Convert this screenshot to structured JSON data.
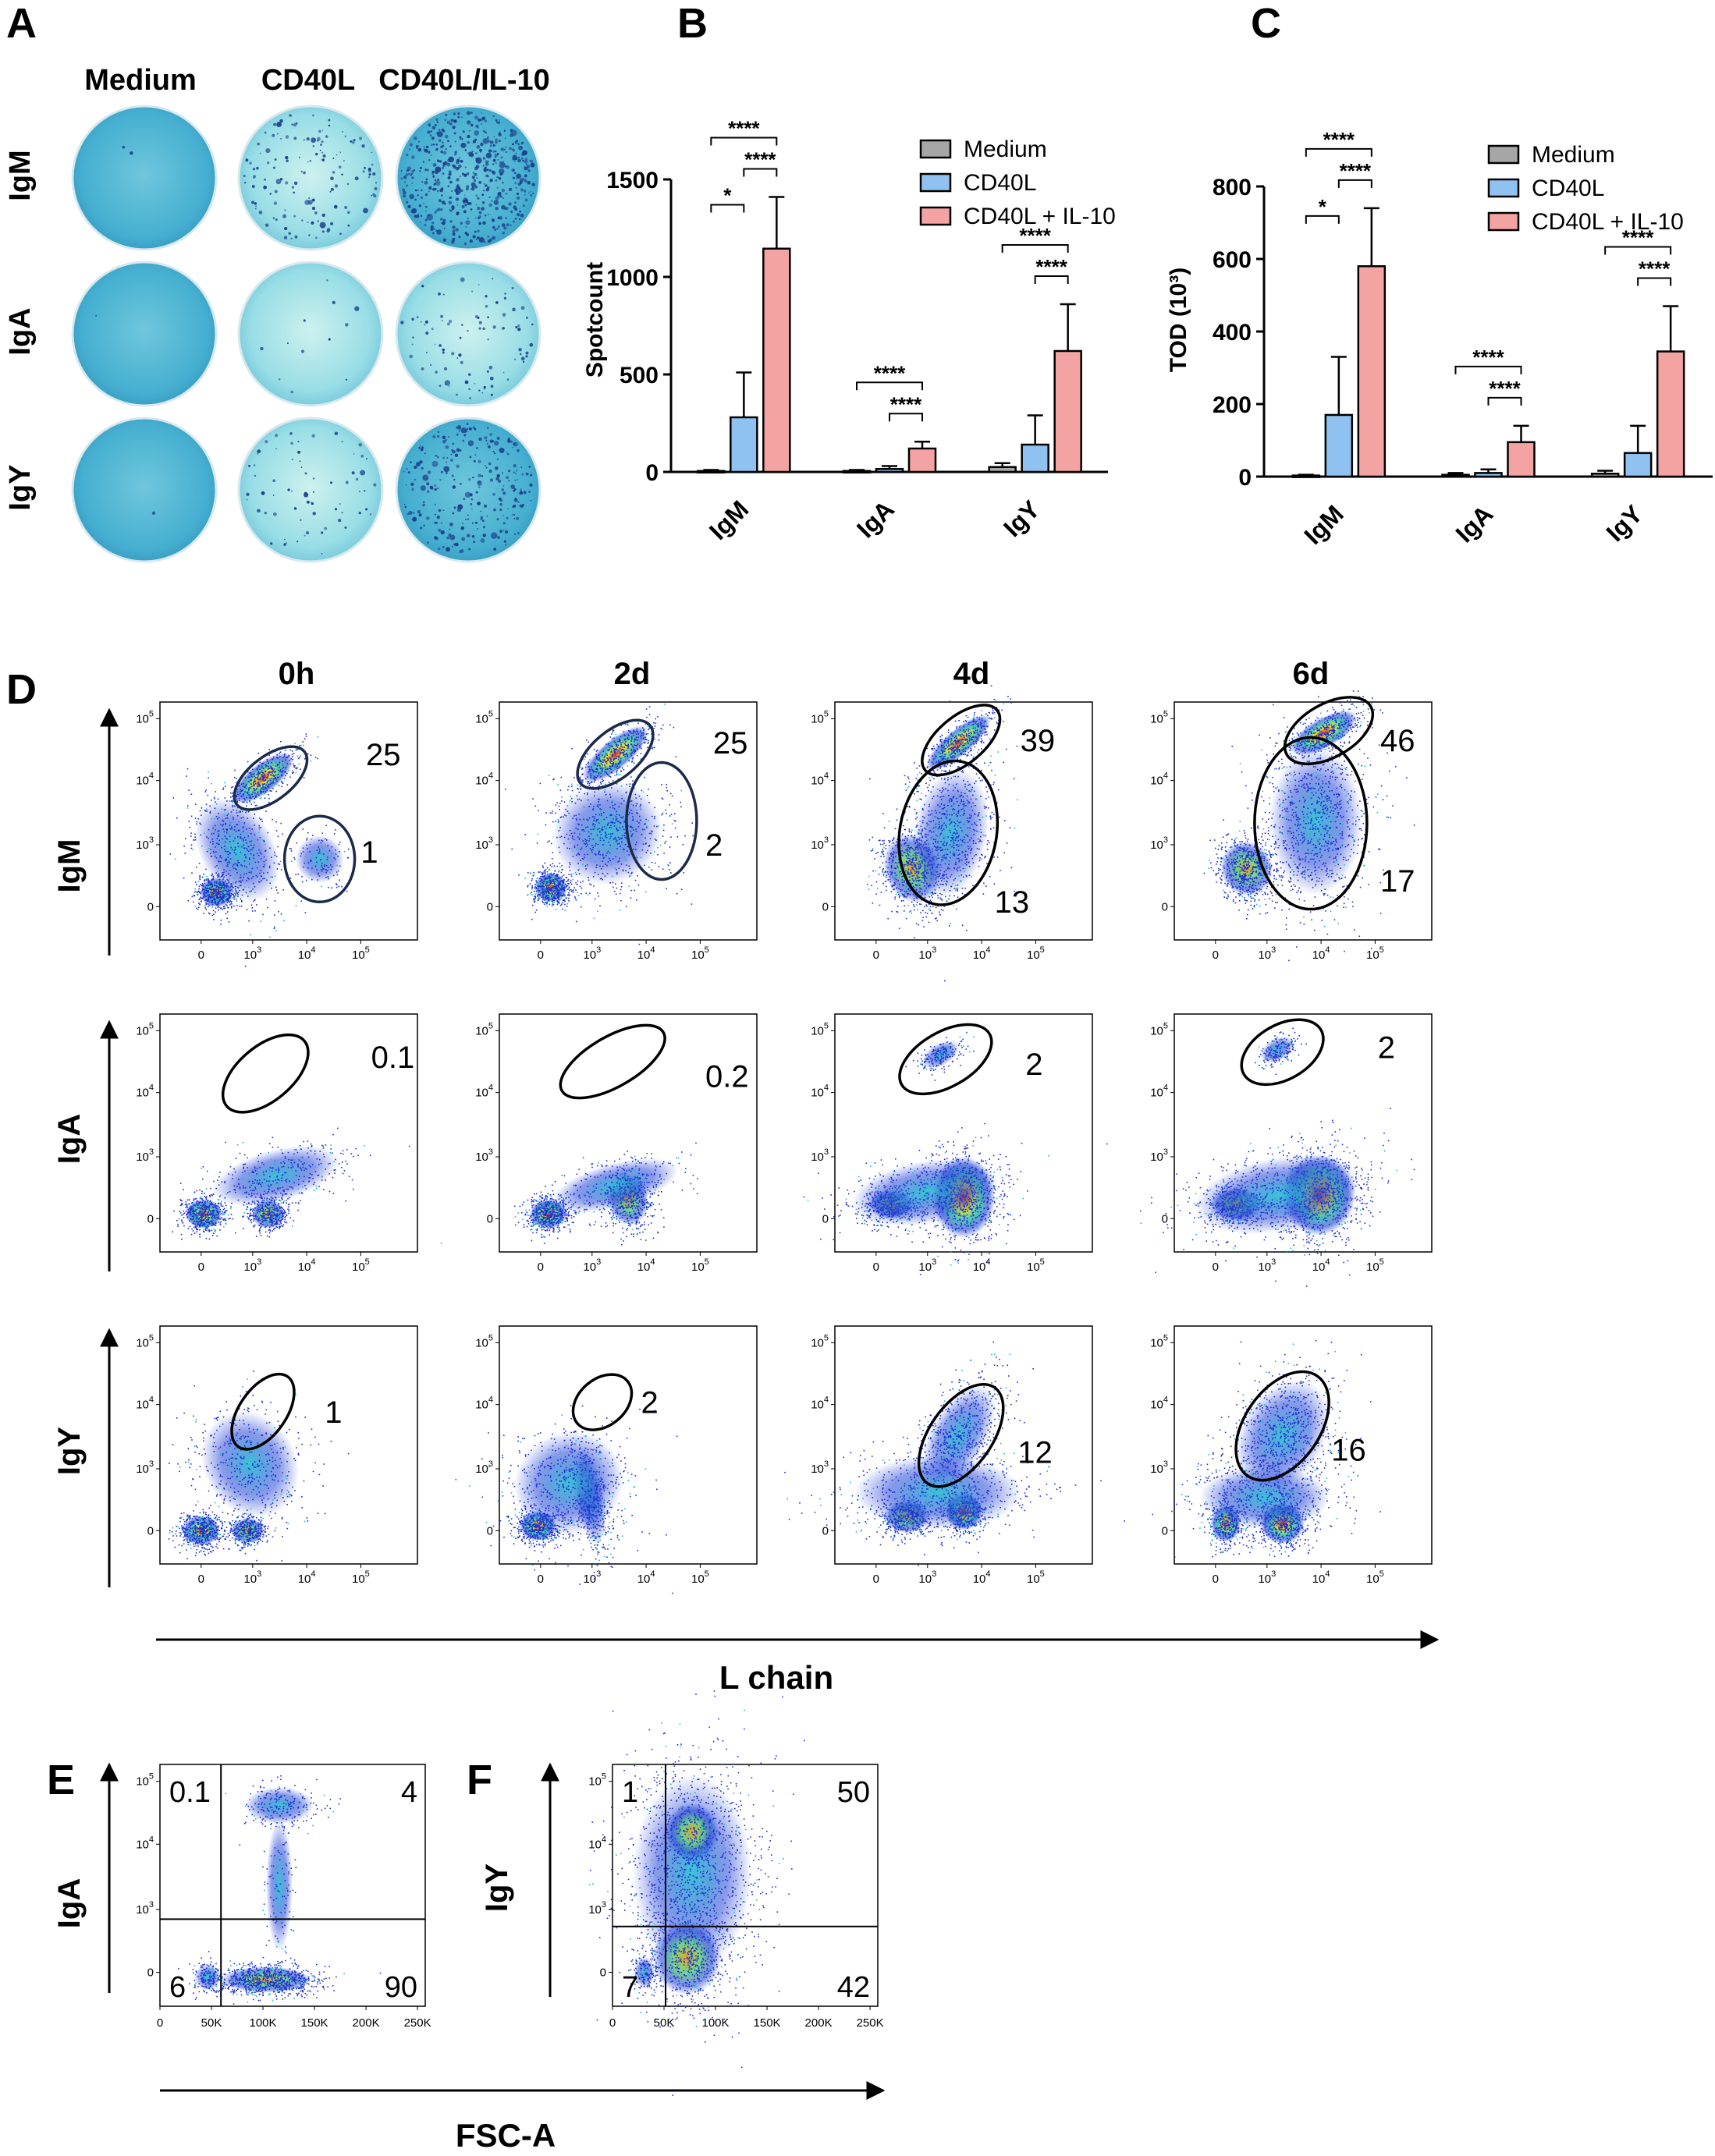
{
  "panels": {
    "A": {
      "letter": "A",
      "columns": [
        "Medium",
        "CD40L",
        "CD40L/IL-10"
      ],
      "rows": [
        "IgM",
        "IgA",
        "IgY"
      ],
      "colors": {
        "plate": "#4fb6d2",
        "plate_light": "#8fdbe6",
        "spot": "#1d3f8a"
      },
      "spot_density": [
        [
          2,
          140,
          520
        ],
        [
          1,
          12,
          90
        ],
        [
          1,
          70,
          260
        ]
      ]
    },
    "B": {
      "letter": "B",
      "chart_data": {
        "type": "bar",
        "ylabel": "Spotcount",
        "ylim": [
          0,
          1500
        ],
        "yticks": [
          "0",
          "500",
          "1000",
          "1500"
        ],
        "categories": [
          "IgM",
          "IgA",
          "IgY"
        ],
        "series": [
          {
            "name": "Medium",
            "color": "#a6a6a6",
            "values": [
              5,
              5,
              25
            ],
            "errors": [
              5,
              5,
              20
            ]
          },
          {
            "name": "CD40L",
            "color": "#8fc2f0",
            "values": [
              280,
              15,
              140
            ],
            "errors": [
              230,
              15,
              150
            ]
          },
          {
            "name": "CD40L + IL-10",
            "color": "#f4a3a3",
            "values": [
              1145,
              120,
              620
            ],
            "errors": [
              265,
              35,
              240
            ]
          }
        ],
        "significance": [
          {
            "category": 0,
            "from": 0,
            "to": 1,
            "label": "*"
          },
          {
            "category": 0,
            "from": 1,
            "to": 2,
            "label": "****"
          },
          {
            "category": 0,
            "from": 0,
            "to": 2,
            "label": "****"
          },
          {
            "category": 1,
            "from": 1,
            "to": 2,
            "label": "****"
          },
          {
            "category": 1,
            "from": 0,
            "to": 2,
            "label": "****"
          },
          {
            "category": 2,
            "from": 1,
            "to": 2,
            "label": "****"
          },
          {
            "category": 2,
            "from": 0,
            "to": 2,
            "label": "****"
          }
        ]
      }
    },
    "C": {
      "letter": "C",
      "chart_data": {
        "type": "bar",
        "ylabel": "TOD (10³)",
        "ylim": [
          0,
          800
        ],
        "yticks": [
          "0",
          "200",
          "400",
          "600",
          "800"
        ],
        "categories": [
          "IgM",
          "IgA",
          "IgY"
        ],
        "series": [
          {
            "name": "Medium",
            "color": "#a6a6a6",
            "values": [
              3,
              5,
              8
            ],
            "errors": [
              2,
              5,
              8
            ]
          },
          {
            "name": "CD40L",
            "color": "#8fc2f0",
            "values": [
              170,
              10,
              65
            ],
            "errors": [
              160,
              10,
              75
            ]
          },
          {
            "name": "CD40L + IL-10",
            "color": "#f4a3a3",
            "values": [
              580,
              95,
              345
            ],
            "errors": [
              160,
              45,
              125
            ]
          }
        ],
        "significance": [
          {
            "category": 0,
            "from": 0,
            "to": 1,
            "label": "*"
          },
          {
            "category": 0,
            "from": 1,
            "to": 2,
            "label": "****"
          },
          {
            "category": 0,
            "from": 0,
            "to": 2,
            "label": "****"
          },
          {
            "category": 1,
            "from": 1,
            "to": 2,
            "label": "****"
          },
          {
            "category": 1,
            "from": 0,
            "to": 2,
            "label": "****"
          },
          {
            "category": 2,
            "from": 1,
            "to": 2,
            "label": "****"
          },
          {
            "category": 2,
            "from": 0,
            "to": 2,
            "label": "****"
          }
        ]
      }
    },
    "D": {
      "letter": "D",
      "timepoints": [
        "0h",
        "2d",
        "4d",
        "6d"
      ],
      "rows": [
        "IgM",
        "IgA",
        "IgY"
      ],
      "xlabel": "L chain",
      "gate_values": [
        [
          [
            "25",
            "1"
          ],
          [
            "25",
            "2"
          ],
          [
            "39",
            "13"
          ],
          [
            "46",
            "17"
          ]
        ],
        [
          [
            "0.1"
          ],
          [
            "0.2"
          ],
          [
            "2"
          ],
          [
            "2"
          ]
        ],
        [
          [
            "1"
          ],
          [
            "2"
          ],
          [
            "12"
          ],
          [
            "16"
          ]
        ]
      ]
    },
    "E": {
      "letter": "E",
      "ylabel": "IgA",
      "quadrants": {
        "top_left": "0.1",
        "top_right": "4",
        "bottom_left": "6",
        "bottom_right": "90"
      }
    },
    "F": {
      "letter": "F",
      "ylabel": "IgY",
      "quadrants": {
        "top_left": "1",
        "top_right": "50",
        "bottom_left": "7",
        "bottom_right": "42"
      }
    },
    "EF_xlabel": "FSC-A",
    "fsc_ticks": [
      "0",
      "50K",
      "100K",
      "150K",
      "200K",
      "250K"
    ]
  }
}
